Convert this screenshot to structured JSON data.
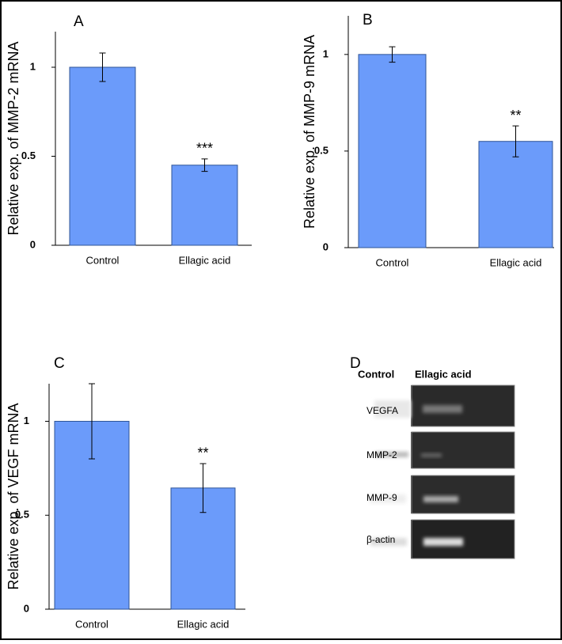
{
  "chart_data": [
    {
      "type": "bar",
      "title": "A",
      "y_label": "Relative exp. of MMP-2 mRNA",
      "categories": [
        "Control",
        "Ellagic acid"
      ],
      "values": [
        1,
        0.45
      ],
      "errors": [
        0.08,
        0.035
      ],
      "significance": [
        null,
        "***"
      ],
      "color": "#6b9bfa",
      "ylim": [
        0,
        1.2
      ],
      "yticks": [
        0,
        0.5,
        1
      ]
    },
    {
      "type": "bar",
      "title": "B",
      "y_label": "Relative exp. of MMP-9 mRNA",
      "categories": [
        "Control",
        "Ellagic acid"
      ],
      "values": [
        1,
        0.55
      ],
      "errors": [
        0.04,
        0.08
      ],
      "significance": [
        null,
        "**"
      ],
      "color": "#6b9bfa",
      "ylim": [
        0,
        1.2
      ],
      "yticks": [
        0,
        0.5,
        1
      ]
    },
    {
      "type": "bar",
      "title": "C",
      "y_label": "Relative exp. of VEGF mRNA",
      "categories": [
        "Control",
        "Ellagic acid"
      ],
      "values": [
        1,
        0.645
      ],
      "errors": [
        0.2,
        0.13
      ],
      "significance": [
        null,
        "**"
      ],
      "color": "#6b9bfa",
      "ylim": [
        0,
        1.2
      ],
      "yticks": [
        0,
        0.5,
        1
      ]
    }
  ],
  "gel": {
    "title": "D",
    "columns": [
      "Control",
      "Ellagic acid"
    ],
    "rows": [
      "VEGFA",
      "MMP-2",
      "MMP-9",
      "β-actin"
    ]
  }
}
